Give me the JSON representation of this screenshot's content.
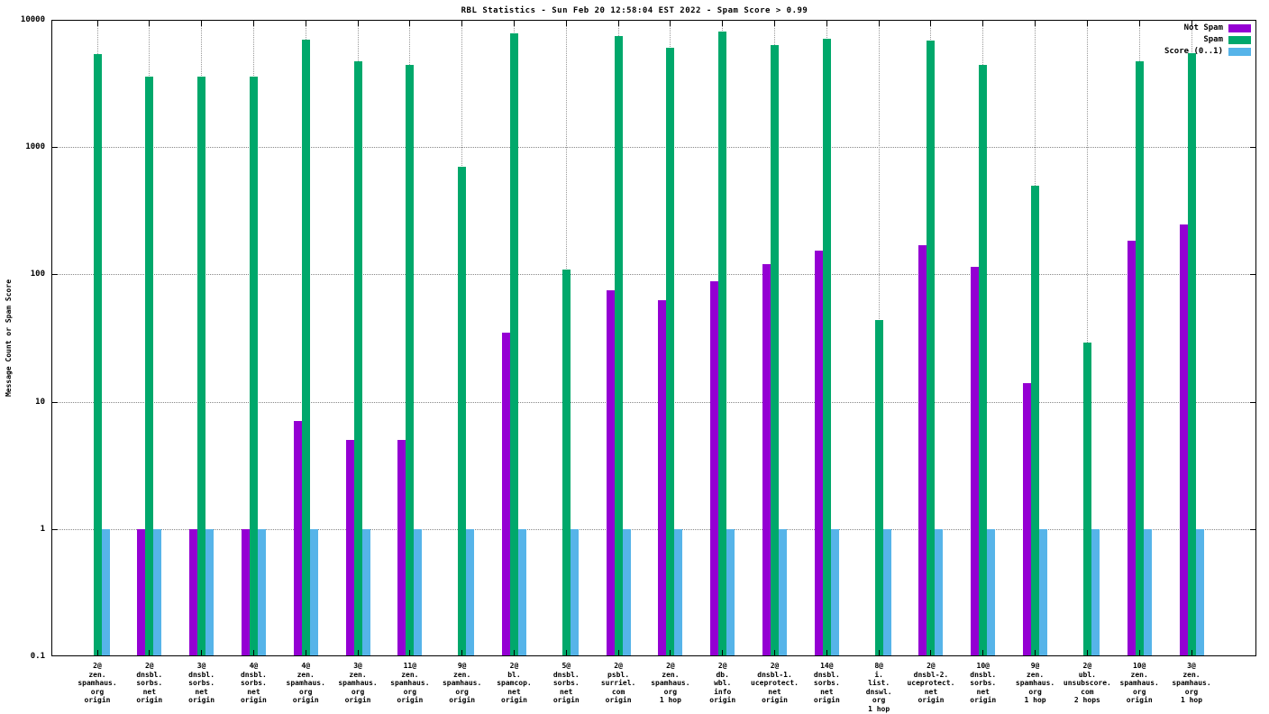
{
  "chart_data": {
    "type": "bar",
    "title": "RBL Statistics - Sun Feb 20 12:58:04 EST 2022 - Spam Score > 0.99",
    "xlabel": "",
    "ylabel": "Message Count or Spam Score",
    "y_scale": "log",
    "ylim": [
      0.1,
      10000
    ],
    "y_ticks": [
      0.1,
      1,
      10,
      100,
      1000,
      10000
    ],
    "y_tick_labels": [
      "0.1",
      "1",
      "10",
      "100",
      "1000",
      "10000"
    ],
    "grid": true,
    "legend_position": "top-right-inside",
    "background": "#ffffff",
    "categories": [
      [
        "2@",
        "zen.",
        "spamhaus.",
        "org",
        "origin"
      ],
      [
        "2@",
        "dnsbl.",
        "sorbs.",
        "net",
        "origin"
      ],
      [
        "3@",
        "dnsbl.",
        "sorbs.",
        "net",
        "origin"
      ],
      [
        "4@",
        "dnsbl.",
        "sorbs.",
        "net",
        "origin"
      ],
      [
        "4@",
        "zen.",
        "spamhaus.",
        "org",
        "origin"
      ],
      [
        "3@",
        "zen.",
        "spamhaus.",
        "org",
        "origin"
      ],
      [
        "11@",
        "zen.",
        "spamhaus.",
        "org",
        "origin"
      ],
      [
        "9@",
        "zen.",
        "spamhaus.",
        "org",
        "origin"
      ],
      [
        "2@",
        "bl.",
        "spamcop.",
        "net",
        "origin"
      ],
      [
        "5@",
        "dnsbl.",
        "sorbs.",
        "net",
        "origin"
      ],
      [
        "2@",
        "psbl.",
        "surriel.",
        "com",
        "origin"
      ],
      [
        "2@",
        "zen.",
        "spamhaus.",
        "org",
        "1 hop"
      ],
      [
        "2@",
        "db.",
        "wbl.",
        "info",
        "origin"
      ],
      [
        "2@",
        "dnsbl-1.",
        "uceprotect.",
        "net",
        "origin"
      ],
      [
        "14@",
        "dnsbl.",
        "sorbs.",
        "net",
        "origin"
      ],
      [
        "8@",
        "i.",
        "list.",
        "dnswl.",
        "org",
        "1 hop"
      ],
      [
        "2@",
        "dnsbl-2.",
        "uceprotect.",
        "net",
        "origin"
      ],
      [
        "10@",
        "dnsbl.",
        "sorbs.",
        "net",
        "origin"
      ],
      [
        "9@",
        "zen.",
        "spamhaus.",
        "org",
        "1 hop"
      ],
      [
        "2@",
        "ubl.",
        "unsubscore.",
        "com",
        "2 hops"
      ],
      [
        "10@",
        "zen.",
        "spamhaus.",
        "org",
        "origin"
      ],
      [
        "3@",
        "zen.",
        "spamhaus.",
        "org",
        "1 hop"
      ]
    ],
    "series": [
      {
        "name": "Not Spam",
        "color": "#9400d3",
        "values": [
          null,
          1,
          1,
          1,
          7,
          5,
          5,
          null,
          35,
          null,
          75,
          63,
          88,
          120,
          155,
          null,
          170,
          115,
          14,
          null,
          185,
          245
        ]
      },
      {
        "name": "Spam",
        "color": "#00a86b",
        "values": [
          5400,
          3600,
          3600,
          3600,
          7000,
          4700,
          4400,
          700,
          7800,
          110,
          7400,
          6000,
          8100,
          6300,
          7100,
          44,
          6900,
          4400,
          500,
          29,
          4700,
          5500
        ]
      },
      {
        "name": "Score (0..1)",
        "color": "#56b4e9",
        "values": [
          1,
          1,
          1,
          1,
          1,
          1,
          1,
          1,
          1,
          1,
          1,
          1,
          1,
          1,
          1,
          1,
          1,
          1,
          1,
          1,
          1,
          1
        ]
      }
    ]
  }
}
